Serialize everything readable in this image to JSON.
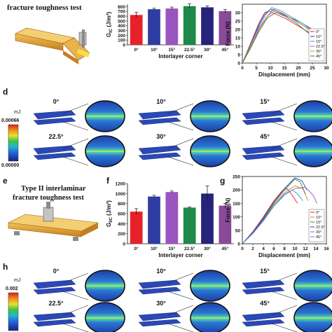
{
  "panels": {
    "top_title": "fracture toughness test",
    "mid_letter": "d",
    "mid_unit": "mJ",
    "mid_scale_max": "0.00066",
    "mid_scale_min": "0.00000",
    "mid_angles": [
      "0°",
      "10°",
      "15°",
      "22.5°",
      "30°",
      "45°"
    ],
    "e_letter": "e",
    "e_title_1": "Type II interlaminar",
    "e_title_2": "fracture toughness test",
    "f_letter": "f",
    "g_letter": "g",
    "h_letter": "h",
    "h_unit": "mJ",
    "h_scale_max": "0.002",
    "h_angles": [
      "0°",
      "10°",
      "15°",
      "22.5°",
      "30°",
      "45°"
    ]
  },
  "chart_data": [
    {
      "id": "top-bar",
      "type": "bar",
      "categories": [
        "0°",
        "10°",
        "15°",
        "22.5°",
        "30°",
        "45°"
      ],
      "values": [
        625,
        745,
        760,
        810,
        785,
        705
      ],
      "errors": [
        55,
        20,
        30,
        45,
        30,
        35
      ],
      "colors": [
        "#e8202a",
        "#2f3da3",
        "#9b55c0",
        "#1d8a4a",
        "#25237a",
        "#8a4a9a"
      ],
      "ylabel": "G_IC (J/m²)",
      "xlabel": "Interlayer corner",
      "yticks": [
        0,
        100,
        200,
        300,
        400,
        500,
        600,
        700,
        800
      ],
      "ylim": [
        0,
        850
      ]
    },
    {
      "id": "top-line",
      "type": "line",
      "xlabel": "Displacement (mm)",
      "ylabel": "Force (N)",
      "xticks": [
        0,
        5,
        10,
        15,
        20,
        25,
        30
      ],
      "yticks": [
        0,
        5,
        10,
        15,
        20,
        25,
        30
      ],
      "xlim": [
        0,
        30
      ],
      "ylim": [
        0,
        35
      ],
      "legend_position": "bottom-right",
      "series": [
        {
          "name": "0°",
          "color": "#e8202a",
          "x": [
            0,
            3,
            6,
            8,
            9.5,
            12,
            16,
            20,
            24,
            27
          ],
          "y": [
            0,
            12,
            24,
            30,
            31,
            29,
            26,
            22,
            18,
            14
          ]
        },
        {
          "name": "10°",
          "color": "#2f3da3",
          "x": [
            0,
            3,
            6,
            8,
            10,
            13,
            17,
            21,
            25,
            28
          ],
          "y": [
            0,
            11,
            23,
            29,
            32,
            30,
            27,
            24,
            20,
            16
          ]
        },
        {
          "name": "15°",
          "color": "#22a3d6",
          "x": [
            0,
            3,
            6,
            8.5,
            10.5,
            14,
            18,
            22,
            25
          ],
          "y": [
            0,
            11,
            22,
            29,
            33,
            31,
            27,
            23,
            19
          ]
        },
        {
          "name": "22.5°",
          "color": "#9b55c0",
          "x": [
            0,
            3,
            6,
            9,
            11,
            14,
            18,
            22,
            26
          ],
          "y": [
            0,
            10,
            21,
            28,
            32,
            30,
            26,
            22,
            17
          ]
        },
        {
          "name": "30°",
          "color": "#e07a20",
          "x": [
            0,
            3,
            6,
            9,
            11.5,
            15,
            19,
            23,
            26
          ],
          "y": [
            0,
            10,
            20,
            28,
            31,
            29,
            25,
            21,
            17
          ]
        },
        {
          "name": "45°",
          "color": "#1d8a4a",
          "x": [
            0,
            3,
            6,
            9,
            12,
            15,
            19,
            22,
            25
          ],
          "y": [
            0,
            9,
            19,
            27,
            30,
            28,
            24,
            20,
            16
          ]
        }
      ]
    },
    {
      "id": "f-bar",
      "type": "bar",
      "categories": [
        "0°",
        "10°",
        "15°",
        "22.5°",
        "30°",
        "45°"
      ],
      "values": [
        640,
        940,
        1030,
        720,
        1000,
        760
      ],
      "errors": [
        60,
        25,
        20,
        10,
        150,
        45
      ],
      "colors": [
        "#e8202a",
        "#2f3da3",
        "#9b55c0",
        "#1d8a4a",
        "#25237a",
        "#8a4a9a"
      ],
      "ylabel": "G_IIC (J/m²)",
      "xlabel": "Interlayer corner",
      "yticks": [
        0,
        200,
        400,
        600,
        800,
        1000,
        1200
      ],
      "ylim": [
        0,
        1200
      ]
    },
    {
      "id": "g-line",
      "type": "line",
      "xlabel": "Displacement (mm)",
      "ylabel": "Force (N)",
      "xticks": [
        0,
        2,
        4,
        6,
        8,
        10,
        12,
        14,
        16
      ],
      "yticks": [
        0,
        50,
        100,
        150,
        200,
        250
      ],
      "xlim": [
        0,
        16
      ],
      "ylim": [
        0,
        250
      ],
      "legend_position": "bottom-right",
      "series": [
        {
          "name": "0°",
          "color": "#e8202a",
          "x": [
            0,
            2,
            4,
            6,
            7.5,
            8.5,
            9.5,
            10.5
          ],
          "y": [
            0,
            45,
            100,
            160,
            195,
            205,
            180,
            150
          ]
        },
        {
          "name": "10°",
          "color": "#e07a20",
          "x": [
            0,
            2,
            4,
            6,
            8,
            10,
            11.5,
            12.5
          ],
          "y": [
            0,
            40,
            90,
            145,
            190,
            215,
            205,
            160
          ]
        },
        {
          "name": "15°",
          "color": "#1d8a4a",
          "x": [
            0,
            2,
            4,
            6,
            8,
            10,
            11,
            12
          ],
          "y": [
            0,
            40,
            92,
            150,
            200,
            240,
            230,
            185
          ]
        },
        {
          "name": "22.5°",
          "color": "#2f3da3",
          "x": [
            0,
            2,
            4,
            6,
            8,
            10,
            11.3,
            12.3
          ],
          "y": [
            0,
            42,
            95,
            155,
            205,
            245,
            235,
            200
          ]
        },
        {
          "name": "30°",
          "color": "#9b55c0",
          "x": [
            0,
            2,
            4,
            6,
            8,
            10,
            12,
            13.5,
            14.2
          ],
          "y": [
            0,
            38,
            85,
            140,
            185,
            205,
            210,
            180,
            150
          ]
        },
        {
          "name": "45°",
          "color": "#22a3d6",
          "x": [
            0,
            2,
            4,
            6,
            8,
            9.5,
            10.5,
            11.5
          ],
          "y": [
            0,
            40,
            88,
            140,
            180,
            200,
            185,
            160
          ]
        }
      ]
    }
  ]
}
